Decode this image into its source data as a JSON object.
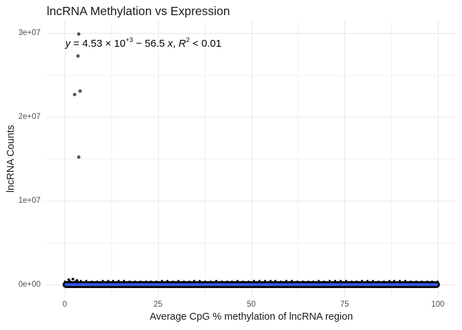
{
  "chart_data": {
    "type": "scatter",
    "title": "lncRNA Methylation vs Expression",
    "xlabel": "Average CpG % methylation of lncRNA region",
    "ylabel": "lncRNA Counts",
    "xlim": [
      -5,
      105
    ],
    "ylim": [
      -1500000,
      31500000
    ],
    "x_ticks": [
      {
        "value": 0,
        "label": "0"
      },
      {
        "value": 25,
        "label": "25"
      },
      {
        "value": 50,
        "label": "50"
      },
      {
        "value": 75,
        "label": "75"
      },
      {
        "value": 100,
        "label": "100"
      }
    ],
    "y_ticks": [
      {
        "value": 0,
        "label": "0e+00"
      },
      {
        "value": 10000000,
        "label": "1e+07"
      },
      {
        "value": 20000000,
        "label": "2e+07"
      },
      {
        "value": 30000000,
        "label": "3e+07"
      }
    ],
    "x_minor_ticks": [
      12.5,
      37.5,
      62.5,
      87.5
    ],
    "y_minor_ticks": [
      5000000,
      15000000,
      25000000
    ],
    "grid": true,
    "legend": false,
    "annotation": {
      "text": "y = 4.53 × 10+3 − 56.5 x, R2 < 0.01",
      "parts": {
        "lhs": "y",
        "eq": " = 4.53 × 10",
        "exponent": "+3",
        "minus": " − 56.5 ",
        "xvar": "x",
        "comma": ", ",
        "rvar": "R",
        "rexp": "2",
        "tail": " < 0.01"
      }
    },
    "outlier_points": [
      [
        3.8,
        29900000
      ],
      [
        3.5,
        27300000
      ],
      [
        2.6,
        22700000
      ],
      [
        4.2,
        23100000
      ],
      [
        3.8,
        15200000
      ]
    ],
    "near_zero_points": [
      [
        1.0,
        550000
      ],
      [
        2.2,
        620000
      ],
      [
        3.3,
        500000
      ]
    ],
    "dense_band": {
      "x_range": [
        0,
        100
      ],
      "y_center": 0,
      "note": "thousands of overplotted black points at near-zero lncRNA counts across full methylation range"
    },
    "regression_line": {
      "intercept": 4530,
      "slope": -56.5,
      "r_squared": "< 0.01"
    },
    "colors": {
      "point": "#575757",
      "dense_points": "#0c0c0c",
      "smooth_line": "#3355EE",
      "grid_major": "#E7E7E7",
      "grid_minor": "#F2F2F2",
      "tick_label": "#4D4D4D",
      "text": "#1A1A1A",
      "background": "#FFFFFF"
    }
  }
}
